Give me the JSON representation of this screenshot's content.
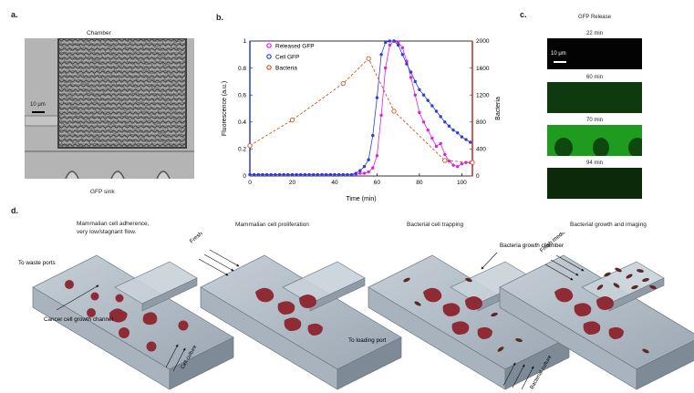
{
  "panel_a": {
    "label": "a.",
    "top_caption": "Chamber",
    "bottom_caption": "GFP sink",
    "scalebar": "10 μm"
  },
  "panel_b": {
    "label": "b.",
    "legend": [
      "Released GFP",
      "Cell GFP",
      "Bacteria"
    ],
    "colors": {
      "released": "#e020e0",
      "cell": "#2a3fd8",
      "bacteria": "#d2531c",
      "left_axis": "#1a2fd0",
      "right_axis": "#b81a1a"
    }
  },
  "chart_data": {
    "type": "line",
    "xlabel": "Time (min)",
    "ylabel": "Fluorescence (a.u.)",
    "ylabel_right": "Bacteria",
    "xlim": [
      0,
      105
    ],
    "ylim": [
      0,
      1
    ],
    "ylim_right": [
      0,
      2000
    ],
    "x_ticks": [
      0,
      20,
      40,
      60,
      80,
      100
    ],
    "y_ticks": [
      0,
      0.2,
      0.4,
      0.6,
      0.8,
      1
    ],
    "y_ticks_right": [
      0,
      400,
      800,
      1200,
      1600,
      2000
    ],
    "legend_position": "top-right",
    "series": [
      {
        "name": "Released GFP",
        "axis": "left",
        "x": [
          0,
          2,
          4,
          6,
          8,
          10,
          12,
          14,
          16,
          18,
          20,
          22,
          24,
          26,
          28,
          30,
          32,
          34,
          36,
          38,
          40,
          42,
          44,
          46,
          48,
          50,
          52,
          54,
          56,
          58,
          60,
          62,
          64,
          66,
          68,
          70,
          72,
          74,
          76,
          78,
          80,
          82,
          84,
          86,
          88,
          90,
          92,
          94,
          96,
          98,
          100,
          102,
          104
        ],
        "y": [
          0.01,
          0.01,
          0.01,
          0.01,
          0.01,
          0.01,
          0.01,
          0.01,
          0.01,
          0.01,
          0.01,
          0.01,
          0.01,
          0.01,
          0.01,
          0.01,
          0.01,
          0.01,
          0.01,
          0.01,
          0.01,
          0.01,
          0.01,
          0.01,
          0.01,
          0.01,
          0.02,
          0.02,
          0.03,
          0.06,
          0.15,
          0.45,
          0.8,
          0.97,
          1.0,
          0.99,
          0.95,
          0.85,
          0.73,
          0.6,
          0.47,
          0.4,
          0.34,
          0.28,
          0.22,
          0.24,
          0.16,
          0.11,
          0.08,
          0.07,
          0.09,
          0.1,
          0.1
        ]
      },
      {
        "name": "Cell GFP",
        "axis": "left",
        "x": [
          0,
          2,
          4,
          6,
          8,
          10,
          12,
          14,
          16,
          18,
          20,
          22,
          24,
          26,
          28,
          30,
          32,
          34,
          36,
          38,
          40,
          42,
          44,
          46,
          48,
          50,
          52,
          54,
          56,
          58,
          60,
          62,
          64,
          66,
          68,
          70,
          72,
          74,
          76,
          78,
          80,
          82,
          84,
          86,
          88,
          90,
          92,
          94,
          96,
          98,
          100,
          102,
          104
        ],
        "y": [
          0.01,
          0.01,
          0.01,
          0.01,
          0.01,
          0.01,
          0.01,
          0.01,
          0.01,
          0.01,
          0.01,
          0.01,
          0.01,
          0.01,
          0.01,
          0.01,
          0.01,
          0.01,
          0.01,
          0.01,
          0.01,
          0.01,
          0.01,
          0.01,
          0.01,
          0.02,
          0.04,
          0.07,
          0.12,
          0.3,
          0.58,
          0.9,
          0.99,
          1.0,
          1.0,
          0.97,
          0.9,
          0.83,
          0.77,
          0.7,
          0.64,
          0.6,
          0.56,
          0.52,
          0.48,
          0.44,
          0.4,
          0.37,
          0.34,
          0.32,
          0.29,
          0.27,
          0.25
        ]
      },
      {
        "name": "Bacteria",
        "axis": "right",
        "x": [
          0,
          20,
          44,
          56,
          68,
          92,
          105
        ],
        "y": [
          450,
          830,
          1370,
          1740,
          960,
          230,
          200
        ]
      }
    ]
  },
  "panel_c": {
    "label": "c.",
    "title": "GFP Release",
    "scalebar": "10 μm",
    "frames": [
      "22 min",
      "60 min",
      "70 min",
      "94 min"
    ]
  },
  "panel_d": {
    "label": "d.",
    "stage1": {
      "title": "Mammalian cell adherence,\nvery low/stagnant flow.",
      "waste": "To waste ports",
      "cancer": "Cancer cell\ngrowth channel",
      "culture": "Cell culture"
    },
    "stage2": {
      "title": "Mammalian cell proliferation",
      "media": "Fresh media",
      "loading": "To loading port"
    },
    "stage3": {
      "title": "Bacterial cell trapping",
      "chamber": "Bacteria growth\nchamber",
      "culture": "Bacterial culture"
    },
    "stage4": {
      "title": "Bacterial growth and imaging",
      "media": "Fresh media"
    }
  }
}
